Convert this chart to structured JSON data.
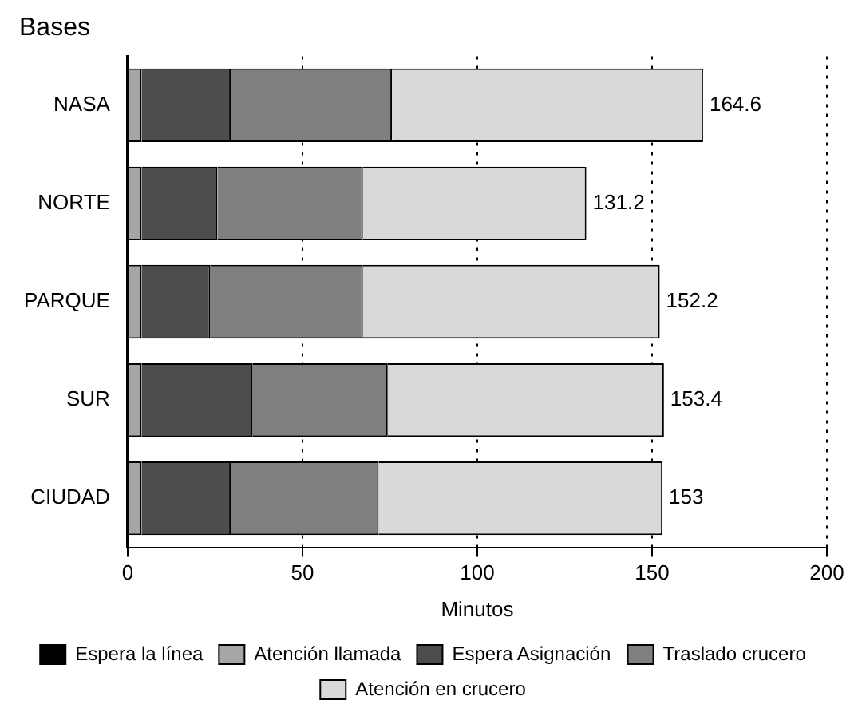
{
  "chart_data": {
    "type": "bar",
    "orientation": "horizontal",
    "stacked": true,
    "ylabel": "Bases",
    "xlabel": "Minutos",
    "categories": [
      "NASA",
      "NORTE",
      "PARQUE",
      "SUR",
      "CIUDAD"
    ],
    "series": [
      {
        "name": "Espera la línea",
        "color": "#000000",
        "values": [
          0,
          0,
          0,
          0,
          0
        ]
      },
      {
        "name": "Atención llamada",
        "color": "#a6a6a6",
        "values": [
          4,
          4,
          4,
          4,
          4
        ]
      },
      {
        "name": "Espera Asignación",
        "color": "#4d4d4d",
        "values": [
          25.5,
          21.7,
          19.7,
          31.8,
          25.5
        ]
      },
      {
        "name": "Traslado crucero",
        "color": "#7f7f7f",
        "values": [
          46.1,
          41.6,
          43.6,
          38.6,
          42.3
        ]
      },
      {
        "name": "Atención en crucero",
        "color": "#d9d9d9",
        "values": [
          89,
          63.9,
          84.9,
          79,
          81.2
        ]
      }
    ],
    "totals": [
      "164.6",
      "131.2",
      "152.2",
      "153.4",
      "153"
    ],
    "xlim": [
      0,
      200
    ],
    "xticks": [
      0,
      50,
      100,
      150,
      200
    ],
    "grid": "x",
    "legend": "bottom"
  }
}
